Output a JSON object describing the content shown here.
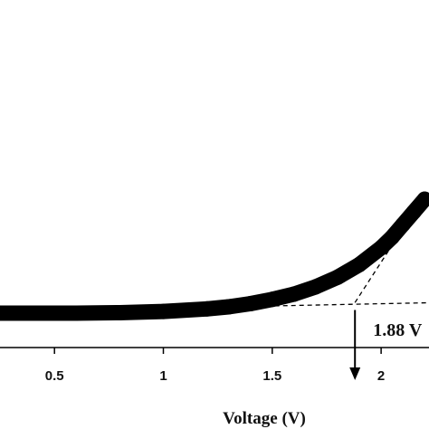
{
  "chart_data": {
    "type": "line",
    "xlabel": "Voltage (V)",
    "ylabel": "",
    "xlim": [
      0.25,
      2.22
    ],
    "ylim": [
      0,
      1
    ],
    "x_ticks": [
      {
        "value": 0.5,
        "label": "0.5"
      },
      {
        "value": 1,
        "label": "1"
      },
      {
        "value": 1.5,
        "label": "1.5"
      },
      {
        "value": 2,
        "label": "2"
      }
    ],
    "series": [
      {
        "x": [
          0.25,
          0.4,
          0.6,
          0.8,
          1.0,
          1.2,
          1.3,
          1.4,
          1.5,
          1.6,
          1.7,
          1.8,
          1.9,
          2.0,
          2.05,
          2.1,
          2.15,
          2.2
        ],
        "y": [
          0.0,
          0.0,
          0.0,
          0.002,
          0.008,
          0.02,
          0.03,
          0.045,
          0.065,
          0.09,
          0.125,
          0.17,
          0.23,
          0.31,
          0.36,
          0.42,
          0.48,
          0.54
        ]
      }
    ],
    "baseline_fit_y": 0.032,
    "tangent_line": [
      [
        1.88,
        0.05
      ],
      [
        2.2,
        0.56
      ]
    ],
    "annotation": {
      "text": "1.88 V",
      "x": 1.88
    },
    "grid": false,
    "legend": "none"
  }
}
